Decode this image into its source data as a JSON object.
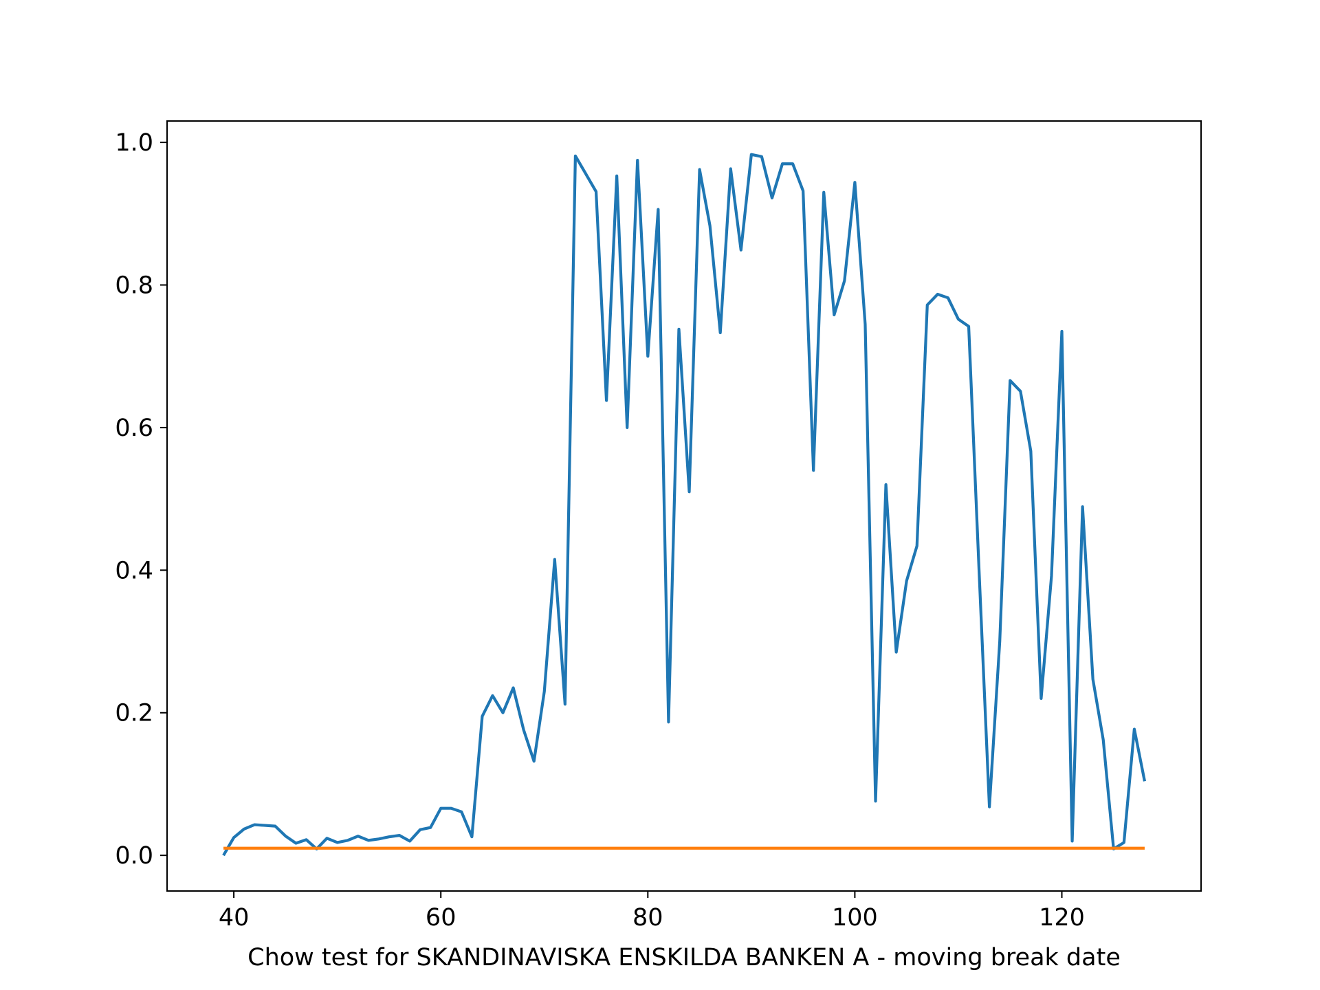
{
  "chart_data": {
    "type": "line",
    "title": "",
    "xlabel": "Chow test for SKANDINAVISKA ENSKILDA BANKEN A - moving break date",
    "ylabel": "",
    "xlim": [
      33.55,
      133.45
    ],
    "ylim": [
      -0.05,
      1.03
    ],
    "x_ticks": [
      40,
      60,
      80,
      100,
      120
    ],
    "x_tick_labels": [
      "40",
      "60",
      "80",
      "100",
      "120"
    ],
    "y_ticks": [
      0.0,
      0.2,
      0.4,
      0.6,
      0.8,
      1.0
    ],
    "y_tick_labels": [
      "0.0",
      "0.2",
      "0.4",
      "0.6",
      "0.8",
      "1.0"
    ],
    "grid": false,
    "legend": "none",
    "series": [
      {
        "color": "#1f77b4",
        "x": [
          39,
          40,
          41,
          42,
          43,
          44,
          45,
          46,
          47,
          48,
          49,
          50,
          51,
          52,
          53,
          54,
          55,
          56,
          57,
          58,
          59,
          60,
          61,
          62,
          63,
          64,
          65,
          66,
          67,
          68,
          69,
          70,
          71,
          72,
          73,
          74,
          75,
          76,
          77,
          78,
          79,
          80,
          81,
          82,
          83,
          84,
          85,
          86,
          87,
          88,
          89,
          90,
          91,
          92,
          93,
          94,
          95,
          96,
          97,
          98,
          99,
          100,
          101,
          102,
          103,
          104,
          105,
          106,
          107,
          108,
          109,
          110,
          111,
          112,
          113,
          114,
          115,
          116,
          117,
          118,
          119,
          120,
          121,
          122,
          123,
          124,
          125,
          126,
          127,
          128
        ],
        "values": [
          0.0,
          0.025,
          0.037,
          0.043,
          0.042,
          0.041,
          0.027,
          0.017,
          0.022,
          0.009,
          0.024,
          0.018,
          0.021,
          0.027,
          0.021,
          0.023,
          0.026,
          0.028,
          0.02,
          0.036,
          0.039,
          0.066,
          0.066,
          0.061,
          0.026,
          0.195,
          0.224,
          0.2,
          0.235,
          0.176,
          0.132,
          0.23,
          0.415,
          0.212,
          0.981,
          0.956,
          0.931,
          0.638,
          0.953,
          0.6,
          0.975,
          0.7,
          0.906,
          0.187,
          0.738,
          0.51,
          0.962,
          0.883,
          0.733,
          0.963,
          0.849,
          0.983,
          0.98,
          0.922,
          0.97,
          0.97,
          0.932,
          0.54,
          0.93,
          0.758,
          0.806,
          0.944,
          0.745,
          0.076,
          0.52,
          0.285,
          0.385,
          0.434,
          0.772,
          0.787,
          0.782,
          0.752,
          0.742,
          0.4,
          0.068,
          0.3,
          0.666,
          0.651,
          0.567,
          0.22,
          0.392,
          0.735,
          0.02,
          0.489,
          0.247,
          0.162,
          0.009,
          0.018,
          0.177,
          0.104
        ]
      },
      {
        "color": "#ff7f0e",
        "x": [
          39,
          128
        ],
        "values": [
          0.01,
          0.01
        ]
      }
    ]
  }
}
